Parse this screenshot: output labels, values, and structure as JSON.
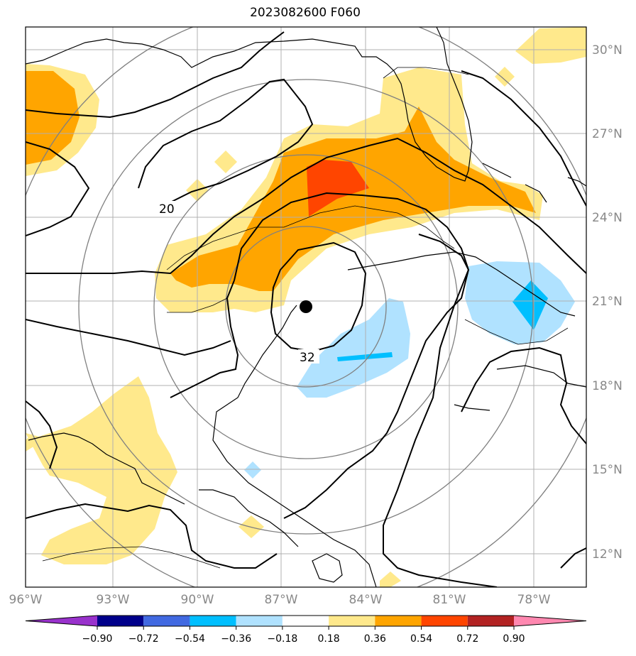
{
  "title": "2023082600 F060",
  "lat_labels": [
    "30°N",
    "27°N",
    "24°N",
    "21°N",
    "18°N",
    "15°N",
    "12°N"
  ],
  "lon_labels": [
    "96°W",
    "93°W",
    "90°W",
    "87°W",
    "84°W",
    "81°W",
    "78°W"
  ],
  "contour_labels": [
    "20",
    "32"
  ],
  "colorbar": {
    "labels": [
      "−0.90",
      "−0.72",
      "−0.54",
      "−0.36",
      "−0.18",
      "0.18",
      "0.36",
      "0.54",
      "0.72",
      "0.90"
    ],
    "colors": [
      "#9932cc",
      "#00008b",
      "#4169e1",
      "#00bfff",
      "#b0e2ff",
      "#ffffff",
      "#ffe98c",
      "#ffa500",
      "#ff4500",
      "#b22222",
      "#ff88b0"
    ]
  },
  "fill_colors": {
    "light_yellow": "#ffe98c",
    "orange": "#ffa500",
    "red_orange": "#ff4500",
    "light_blue": "#b0e2ff",
    "blue": "#00bfff"
  }
}
